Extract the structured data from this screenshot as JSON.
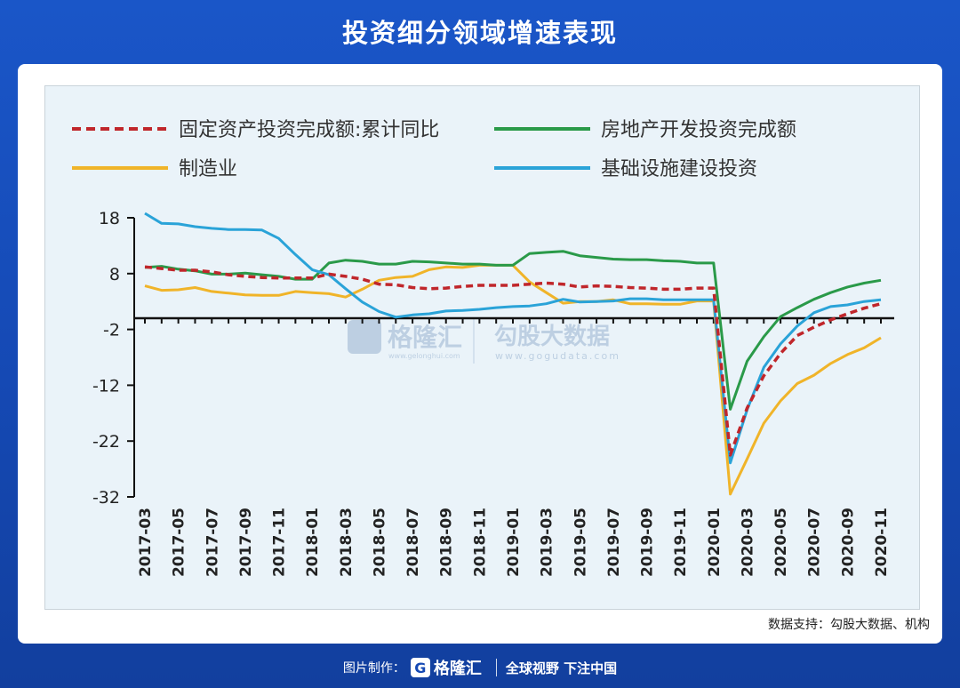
{
  "header": {
    "title": "投资细分领域增速表现"
  },
  "source_note": "数据支持：勾股大数据、机构",
  "watermark": {
    "brand_cn": "格隆汇",
    "brand_url": "www.gelonghui.com",
    "partner_cn": "勾股大数据",
    "partner_url": "www.gogudata.com"
  },
  "footer": {
    "prefix": "图片制作：",
    "brand": "格隆汇",
    "slogan": "全球视野 下注中国"
  },
  "colors": {
    "fixed": "#c0262b",
    "realestate": "#2a9a49",
    "manufacturing": "#f0b429",
    "infrastructure": "#2aa3d8"
  },
  "chart_data": {
    "type": "line",
    "title": "投资细分领域增速表现",
    "ylim": [
      -32,
      18
    ],
    "yticks": [
      18,
      8,
      -2,
      -12,
      -22,
      -32
    ],
    "zero_line": 0,
    "x_labels": [
      "2017-03",
      "2017-05",
      "2017-07",
      "2017-09",
      "2017-11",
      "2018-01",
      "2018-03",
      "2018-05",
      "2018-07",
      "2018-09",
      "2018-11",
      "2019-01",
      "2019-03",
      "2019-05",
      "2019-07",
      "2019-09",
      "2019-11",
      "2020-01",
      "2020-03",
      "2020-05",
      "2020-07",
      "2020-09",
      "2020-11"
    ],
    "x_months": [
      "2017-03",
      "2017-04",
      "2017-05",
      "2017-06",
      "2017-07",
      "2017-08",
      "2017-09",
      "2017-10",
      "2017-11",
      "2017-12",
      "2018-01",
      "2018-02",
      "2018-03",
      "2018-04",
      "2018-05",
      "2018-06",
      "2018-07",
      "2018-08",
      "2018-09",
      "2018-10",
      "2018-11",
      "2018-12",
      "2019-01",
      "2019-02",
      "2019-03",
      "2019-04",
      "2019-05",
      "2019-06",
      "2019-07",
      "2019-08",
      "2019-09",
      "2019-10",
      "2019-11",
      "2019-12",
      "2020-01",
      "2020-02",
      "2020-03",
      "2020-04",
      "2020-05",
      "2020-06",
      "2020-07",
      "2020-08",
      "2020-09",
      "2020-10",
      "2020-11"
    ],
    "series": [
      {
        "key": "fixed",
        "name": "固定资产投资完成额:累计同比",
        "style": "dashed",
        "values": [
          9.2,
          8.9,
          8.6,
          8.6,
          8.3,
          7.8,
          7.5,
          7.3,
          7.2,
          7.2,
          7.2,
          7.9,
          7.5,
          7.0,
          6.1,
          6.0,
          5.5,
          5.3,
          5.4,
          5.7,
          5.9,
          5.9,
          5.9,
          6.1,
          6.3,
          6.1,
          5.6,
          5.8,
          5.7,
          5.5,
          5.4,
          5.2,
          5.2,
          5.4,
          5.4,
          -24.5,
          -16.1,
          -10.3,
          -6.3,
          -3.1,
          -1.6,
          -0.3,
          0.8,
          1.8,
          2.6
        ]
      },
      {
        "key": "realestate",
        "name": "房地产开发投资完成额",
        "style": "solid",
        "values": [
          9.1,
          9.3,
          8.8,
          8.5,
          7.9,
          7.9,
          8.1,
          7.8,
          7.5,
          7.0,
          7.0,
          9.9,
          10.4,
          10.2,
          9.7,
          9.7,
          10.2,
          10.1,
          9.9,
          9.7,
          9.7,
          9.5,
          9.5,
          11.6,
          11.8,
          12.0,
          11.2,
          10.9,
          10.6,
          10.5,
          10.5,
          10.3,
          10.2,
          9.9,
          9.9,
          -16.3,
          -7.7,
          -3.3,
          0.3,
          1.9,
          3.4,
          4.6,
          5.6,
          6.3,
          6.8
        ]
      },
      {
        "key": "manufacturing",
        "name": "制造业",
        "style": "solid",
        "values": [
          5.8,
          5.0,
          5.1,
          5.5,
          4.8,
          4.5,
          4.2,
          4.1,
          4.1,
          4.8,
          4.6,
          4.4,
          3.8,
          5.2,
          6.8,
          7.3,
          7.5,
          8.7,
          9.2,
          9.1,
          9.5,
          9.5,
          9.5,
          6.5,
          4.6,
          2.7,
          3.0,
          3.0,
          3.3,
          2.6,
          2.6,
          2.5,
          2.5,
          3.1,
          3.1,
          -31.5,
          -25.2,
          -18.8,
          -14.8,
          -11.7,
          -10.2,
          -8.1,
          -6.5,
          -5.3,
          -3.5
        ]
      },
      {
        "key": "infrastructure",
        "name": "基础设施建设投资",
        "style": "solid",
        "values": [
          18.8,
          17.0,
          16.9,
          16.4,
          16.1,
          15.9,
          15.9,
          15.8,
          14.3,
          11.4,
          8.7,
          7.8,
          5.3,
          2.9,
          1.2,
          0.2,
          0.6,
          0.8,
          1.3,
          1.4,
          1.6,
          1.9,
          2.1,
          2.2,
          2.6,
          3.4,
          2.9,
          3.0,
          3.1,
          3.5,
          3.5,
          3.3,
          3.3,
          3.3,
          3.3,
          -25.9,
          -16.4,
          -8.8,
          -4.6,
          -1.4,
          1.0,
          2.1,
          2.4,
          3.0,
          3.3
        ]
      }
    ],
    "legend": [
      {
        "key": "fixed",
        "label": "固定资产投资完成额:累计同比"
      },
      {
        "key": "realestate",
        "label": "房地产开发投资完成额"
      },
      {
        "key": "manufacturing",
        "label": "制造业"
      },
      {
        "key": "infrastructure",
        "label": "基础设施建设投资"
      }
    ]
  }
}
